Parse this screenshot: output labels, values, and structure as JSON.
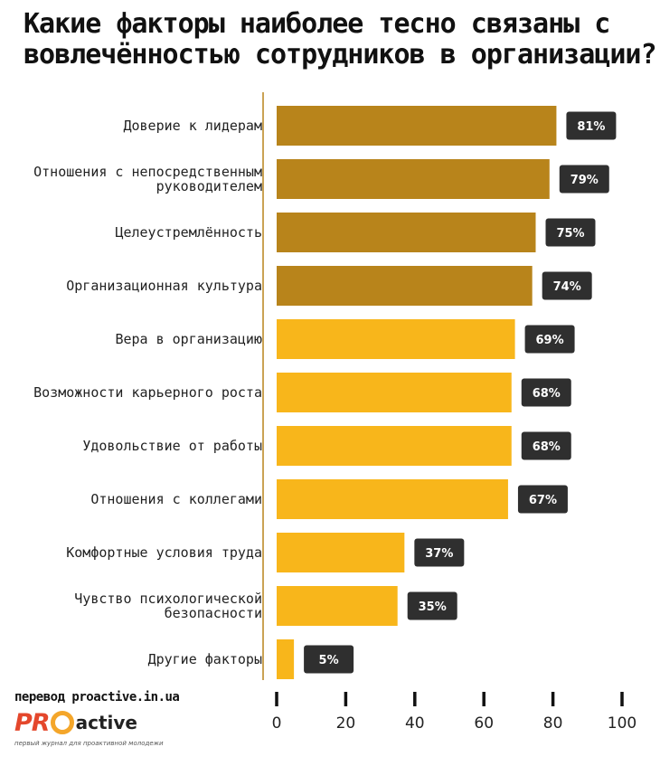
{
  "page": {
    "title": "Какие факторы наиболее тесно связаны с вовлечённостью сотрудников в организации?"
  },
  "footer": {
    "credit": "перевод proactive.in.ua",
    "logo_pro": "PR",
    "logo_active": "active",
    "tagline": "первый журнал для проактивной молодежи"
  },
  "colors": {
    "top_bar": "#b8841b",
    "bar": "#f8b61b",
    "badge": "#2f2f2f",
    "axis": "#111111"
  },
  "chart_data": {
    "type": "bar",
    "orientation": "horizontal",
    "categories": [
      "Доверие к лидерам",
      "Отношения с непосредственным руководителем",
      "Целеустремлённость",
      "Организационная культура",
      "Вера в организацию",
      "Возможности карьерного роста",
      "Удовольствие от работы",
      "Отношения с коллегами",
      "Комфортные условия труда",
      "Чувство психологической безопасности",
      "Другие факторы"
    ],
    "values": [
      81,
      79,
      75,
      74,
      69,
      68,
      68,
      67,
      37,
      35,
      5
    ],
    "value_labels": [
      "81%",
      "79%",
      "75%",
      "74%",
      "69%",
      "68%",
      "68%",
      "67%",
      "37%",
      "35%",
      "5%"
    ],
    "highlight": [
      true,
      true,
      true,
      true,
      false,
      false,
      false,
      false,
      false,
      false,
      false
    ],
    "xlim": [
      0,
      100
    ],
    "xticks": [
      "0",
      "20",
      "40",
      "60",
      "80",
      "100"
    ],
    "grid": false,
    "legend": "none"
  }
}
